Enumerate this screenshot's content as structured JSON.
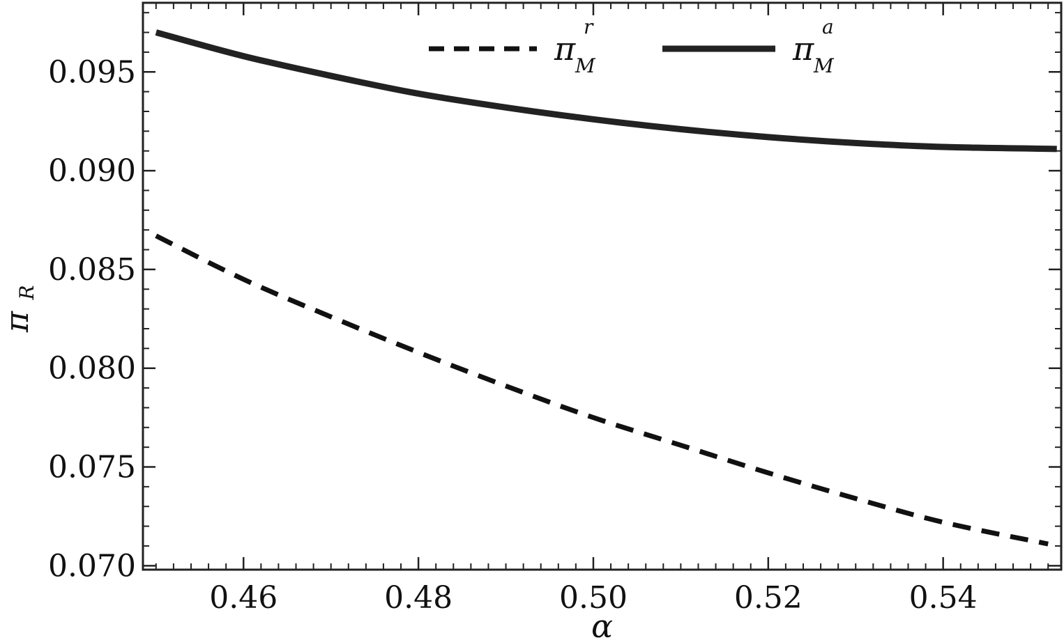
{
  "chart_data": {
    "type": "line",
    "xlabel": "α",
    "ylabel": "π",
    "ylabel_sub": "R",
    "xlim": [
      0.4485,
      0.5535
    ],
    "ylim": [
      0.0698,
      0.0985
    ],
    "xticks": [
      0.46,
      0.48,
      0.5,
      0.52,
      0.54
    ],
    "xtick_labels": [
      "0.46",
      "0.48",
      "0.50",
      "0.52",
      "0.54"
    ],
    "yticks": [
      0.07,
      0.075,
      0.08,
      0.085,
      0.09,
      0.095
    ],
    "ytick_labels": [
      "0.070",
      "0.075",
      "0.080",
      "0.085",
      "0.090",
      "0.095"
    ],
    "grid": false,
    "legend_position": "top",
    "series": [
      {
        "name": "π",
        "name_sub": "M",
        "name_sup": "r",
        "style": "dashed",
        "color": "#111111",
        "x": [
          0.45,
          0.46,
          0.47,
          0.48,
          0.49,
          0.5,
          0.51,
          0.52,
          0.53,
          0.54,
          0.552
        ],
        "y": [
          0.0867,
          0.0845,
          0.0826,
          0.0808,
          0.0791,
          0.0775,
          0.0761,
          0.0747,
          0.0734,
          0.0722,
          0.0711
        ]
      },
      {
        "name": "π",
        "name_sub": "M",
        "name_sup": "a",
        "style": "solid",
        "color": "#222222",
        "x": [
          0.45,
          0.46,
          0.47,
          0.48,
          0.49,
          0.5,
          0.51,
          0.52,
          0.53,
          0.54,
          0.553
        ],
        "y": [
          0.097,
          0.0958,
          0.0948,
          0.0939,
          0.0932,
          0.0926,
          0.0921,
          0.0917,
          0.0914,
          0.0912,
          0.0911
        ]
      }
    ]
  }
}
